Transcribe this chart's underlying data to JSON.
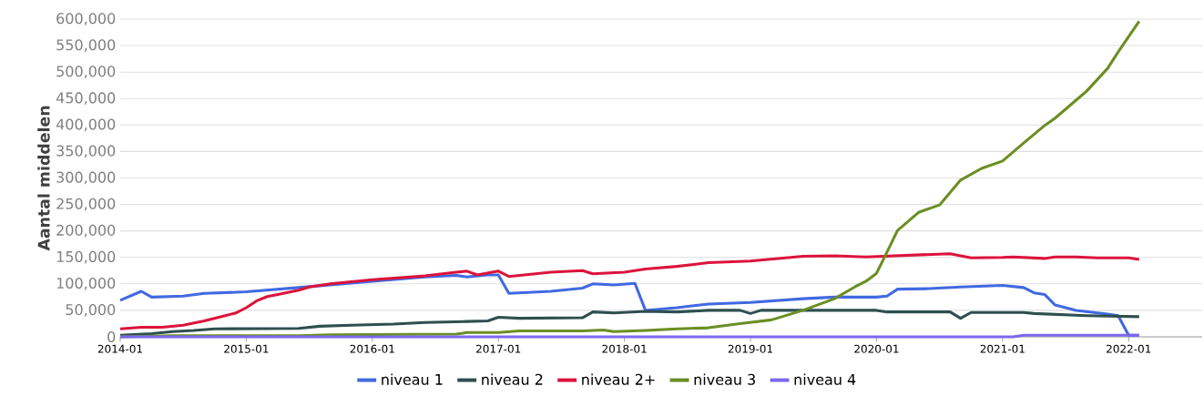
{
  "chart_data": {
    "type": "line",
    "ylabel": "Aantal middelen",
    "xlim": [
      "2014-01",
      "2022-08"
    ],
    "xticks": [
      "2014-01",
      "2015-01",
      "2016-01",
      "2017-01",
      "2018-01",
      "2019-01",
      "2020-01",
      "2021-01",
      "2022-01"
    ],
    "ylim": [
      0,
      600000
    ],
    "yticks": [
      0,
      {
        "value": 50000,
        "label": "50,000"
      },
      {
        "value": 100000,
        "label": "100,000"
      },
      {
        "value": 150000,
        "label": "150,000"
      },
      {
        "value": 200000,
        "label": "200,000"
      },
      {
        "value": 250000,
        "label": "250,000"
      },
      {
        "value": 300000,
        "label": "300,000"
      },
      {
        "value": 350000,
        "label": "350,000"
      },
      {
        "value": 400000,
        "label": "400,000"
      },
      {
        "value": 450000,
        "label": "450,000"
      },
      {
        "value": 500000,
        "label": "500,000"
      },
      {
        "value": 550000,
        "label": "550,000"
      },
      {
        "value": 600000,
        "label": "600,000"
      }
    ],
    "grid": "y",
    "legend": "bottom",
    "marker": "none",
    "line_style": "solid",
    "series": [
      {
        "name": "niveau 1",
        "color": "#4169e1",
        "x": [
          "2014-01",
          "2014-03",
          "2014-04",
          "2014-07",
          "2014-09",
          "2015-01",
          "2015-06",
          "2016-01",
          "2016-06",
          "2016-09",
          "2016-10",
          "2016-12",
          "2017-01",
          "2017-02",
          "2017-06",
          "2017-09",
          "2017-10",
          "2017-12",
          "2018-02",
          "2018-03",
          "2018-06",
          "2018-09",
          "2019-01",
          "2019-06",
          "2019-09",
          "2020-01",
          "2020-02",
          "2020-03",
          "2020-06",
          "2020-09",
          "2021-01",
          "2021-03",
          "2021-04",
          "2021-05",
          "2021-06",
          "2021-08",
          "2021-11",
          "2021-12",
          "2022-01",
          "2022-02"
        ],
        "values": [
          69000,
          86000,
          75000,
          77000,
          82000,
          85000,
          93000,
          105000,
          113000,
          116000,
          113000,
          117000,
          117000,
          82000,
          86000,
          92000,
          100000,
          98000,
          101000,
          50000,
          55000,
          62000,
          65000,
          72000,
          75000,
          75000,
          77000,
          90000,
          91000,
          94000,
          97000,
          93000,
          83000,
          80000,
          60000,
          50000,
          43000,
          40000,
          3000,
          3000
        ]
      },
      {
        "name": "niveau 2",
        "color": "#2f4f4f",
        "x": [
          "2014-01",
          "2014-04",
          "2014-06",
          "2014-08",
          "2014-10",
          "2015-06",
          "2015-08",
          "2015-11",
          "2016-03",
          "2016-06",
          "2016-10",
          "2016-12",
          "2017-01",
          "2017-03",
          "2017-09",
          "2017-10",
          "2017-12",
          "2018-03",
          "2018-06",
          "2018-09",
          "2018-12",
          "2019-01",
          "2019-02",
          "2019-06",
          "2020-01",
          "2020-02",
          "2020-08",
          "2020-09",
          "2020-10",
          "2021-03",
          "2021-04",
          "2021-09",
          "2022-02"
        ],
        "values": [
          3000,
          6000,
          10000,
          12000,
          15000,
          16000,
          20000,
          22000,
          24000,
          27000,
          29000,
          30000,
          37000,
          35000,
          36000,
          47000,
          45000,
          48000,
          47000,
          50000,
          50000,
          44000,
          50000,
          50000,
          50000,
          47000,
          47000,
          35000,
          46000,
          46000,
          44000,
          40000,
          38000
        ]
      },
      {
        "name": "niveau 2+",
        "color": "#dc143c",
        "x": [
          "2014-01",
          "2014-03",
          "2014-05",
          "2014-07",
          "2014-09",
          "2014-11",
          "2014-12",
          "2015-01",
          "2015-02",
          "2015-03",
          "2015-04",
          "2015-06",
          "2015-07",
          "2015-09",
          "2016-01",
          "2016-06",
          "2016-09",
          "2016-10",
          "2016-11",
          "2017-01",
          "2017-02",
          "2017-06",
          "2017-09",
          "2017-10",
          "2018-01",
          "2018-03",
          "2018-06",
          "2018-09",
          "2019-01",
          "2019-06",
          "2019-09",
          "2019-12",
          "2020-08",
          "2020-10",
          "2021-01",
          "2021-02",
          "2021-05",
          "2021-06",
          "2021-08",
          "2021-10",
          "2022-01",
          "2022-02"
        ],
        "values": [
          15000,
          18000,
          18000,
          22000,
          30000,
          40000,
          45000,
          55000,
          68000,
          76000,
          80000,
          88000,
          94000,
          100000,
          108000,
          115000,
          122000,
          124000,
          117000,
          124000,
          114000,
          122000,
          125000,
          119000,
          122000,
          128000,
          133000,
          140000,
          143000,
          152000,
          153000,
          151000,
          157000,
          149000,
          150000,
          151000,
          148000,
          151000,
          151000,
          149000,
          149000,
          146000
        ]
      },
      {
        "name": "niveau 3",
        "color": "#6b8e23",
        "x": [
          "2014-01",
          "2014-06",
          "2015-06",
          "2015-09",
          "2016-09",
          "2016-10",
          "2017-01",
          "2017-03",
          "2017-09",
          "2017-11",
          "2017-12",
          "2018-03",
          "2018-06",
          "2018-09",
          "2018-12",
          "2019-03",
          "2019-06",
          "2019-09",
          "2019-11",
          "2019-12",
          "2020-01",
          "2020-02",
          "2020-03",
          "2020-05",
          "2020-07",
          "2020-09",
          "2020-11",
          "2021-01",
          "2021-03",
          "2021-05",
          "2021-06",
          "2021-08",
          "2021-09",
          "2021-11",
          "2021-12",
          "2022-01",
          "2022-02"
        ],
        "values": [
          0,
          2000,
          2000,
          4000,
          5000,
          8000,
          8000,
          11000,
          11000,
          13000,
          10000,
          12000,
          15000,
          17000,
          25000,
          32000,
          50000,
          72000,
          95000,
          105000,
          120000,
          160000,
          201000,
          235000,
          249000,
          296000,
          318000,
          332000,
          366000,
          399000,
          413000,
          447000,
          464000,
          507000,
          538000,
          567000,
          596000
        ]
      },
      {
        "name": "niveau 4",
        "color": "#7b68ee",
        "x": [
          "2014-01",
          "2021-02",
          "2021-03",
          "2022-02"
        ],
        "values": [
          0,
          0,
          3000,
          3000
        ]
      }
    ]
  }
}
